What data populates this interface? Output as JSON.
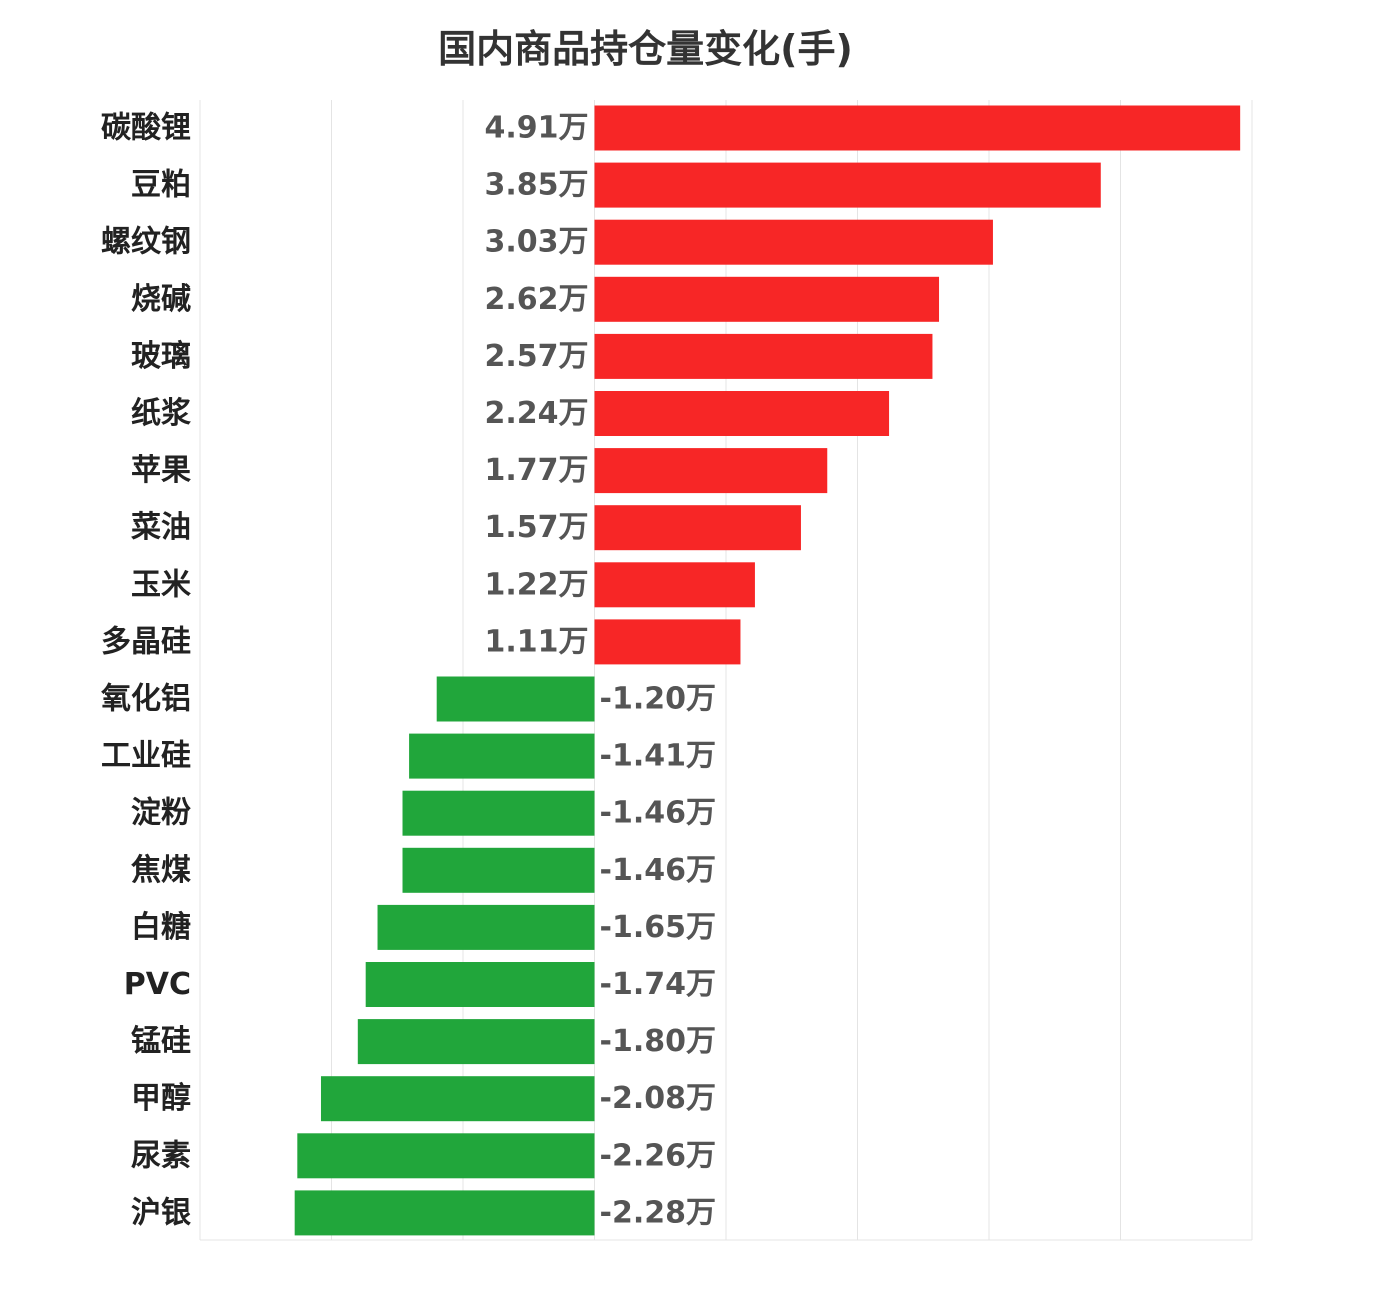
{
  "chart_data": {
    "type": "bar",
    "orientation": "horizontal",
    "title": "国内商品持仓量变化(手)",
    "unit_suffix": "万",
    "categories": [
      "碳酸锂",
      "豆粕",
      "螺纹钢",
      "烧碱",
      "玻璃",
      "纸浆",
      "苹果",
      "菜油",
      "玉米",
      "多晶硅",
      "氧化铝",
      "工业硅",
      "淀粉",
      "焦煤",
      "白糖",
      "PVC",
      "锰硅",
      "甲醇",
      "尿素",
      "沪银"
    ],
    "values": [
      4.91,
      3.85,
      3.03,
      2.62,
      2.57,
      2.24,
      1.77,
      1.57,
      1.22,
      1.11,
      -1.2,
      -1.41,
      -1.46,
      -1.46,
      -1.65,
      -1.74,
      -1.8,
      -2.08,
      -2.26,
      -2.28
    ],
    "value_labels": [
      "4.91万",
      "3.85万",
      "3.03万",
      "2.62万",
      "2.57万",
      "2.24万",
      "1.77万",
      "1.57万",
      "1.22万",
      "1.11万",
      "-1.20万",
      "-1.41万",
      "-1.46万",
      "-1.46万",
      "-1.65万",
      "-1.74万",
      "-1.80万",
      "-2.08万",
      "-2.26万",
      "-2.28万"
    ],
    "xlim": [
      -3,
      5
    ],
    "x_gridlines": [
      -3,
      -2,
      -1,
      0,
      1,
      2,
      3,
      4,
      5
    ],
    "grid": true,
    "colors": {
      "positive": "#f72626",
      "negative": "#21a63b",
      "grid": "#e4e4e4"
    }
  }
}
